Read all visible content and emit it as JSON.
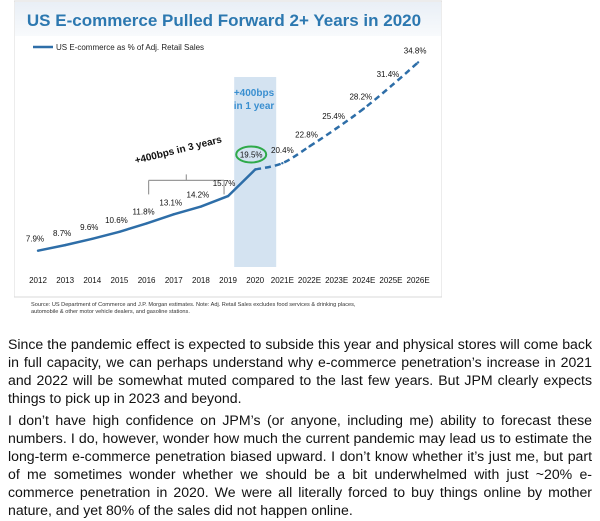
{
  "chart_data": {
    "type": "line",
    "title": "US E-commerce Pulled Forward 2+ Years in 2020",
    "legend": "US E-commerce as % of Adj. Retail Sales",
    "legend_position": "top-left",
    "categories": [
      "2012",
      "2013",
      "2014",
      "2015",
      "2016",
      "2017",
      "2018",
      "2019",
      "2020",
      "2021E",
      "2022E",
      "2023E",
      "2024E",
      "2025E",
      "2026E"
    ],
    "series": [
      {
        "name": "US E-commerce as % of Adj. Retail Sales",
        "values": [
          7.9,
          8.7,
          9.6,
          10.6,
          11.8,
          13.1,
          14.2,
          15.7,
          19.5,
          20.4,
          22.8,
          25.4,
          28.2,
          31.4,
          34.8
        ],
        "actual_through": "2020",
        "projected_from": "2021E"
      }
    ],
    "value_labels": [
      "7.9%",
      "8.7%",
      "9.6%",
      "10.6%",
      "11.8%",
      "13.1%",
      "14.2%",
      "15.7%",
      "19.5%",
      "20.4%",
      "22.8%",
      "25.4%",
      "28.2%",
      "31.4%",
      "34.8%"
    ],
    "annotations": [
      {
        "text": "+400bps in 3 years",
        "span": [
          "2016",
          "2019"
        ]
      },
      {
        "text": "+400bps",
        "text2": "in 1 year",
        "highlight": "2020"
      }
    ],
    "highlight_point": "2020",
    "ylim": [
      5,
      37
    ],
    "grid": false,
    "source": "Source: US Department of Commerce and J.P. Morgan estimates. Note: Adj. Retail Sales excludes food services & drinking places,",
    "source2": "automobile & other motor vehicle dealers, and gasoline stations.",
    "colors": {
      "line": "#2e6ea8",
      "title": "#2c78b0",
      "highlight_band": "#d4e3f1",
      "highlight_text": "#3a8fd0",
      "circle": "#2faa4a"
    }
  },
  "paragraphs": [
    "Since the pandemic effect is expected to subside this year and physical stores will come back in full capacity, we can perhaps understand why e-commerce penetration’s increase in 2021 and 2022 will be somewhat muted compared to the last few years. But JPM clearly expects things to pick up in 2023 and beyond.",
    "I don’t have high confidence on JPM’s (or anyone, including me) ability to forecast these numbers. I do, however, wonder how much the current pandemic may lead us to estimate the long-term e-commerce penetration biased upward. I don’t know whether it’s just me, but part of me sometimes wonder whether we should be a bit underwhelmed with just ~20% e-commerce penetration in 2020. We were all literally forced to buy things online by mother nature, and yet 80% of the sales did not happen online."
  ]
}
